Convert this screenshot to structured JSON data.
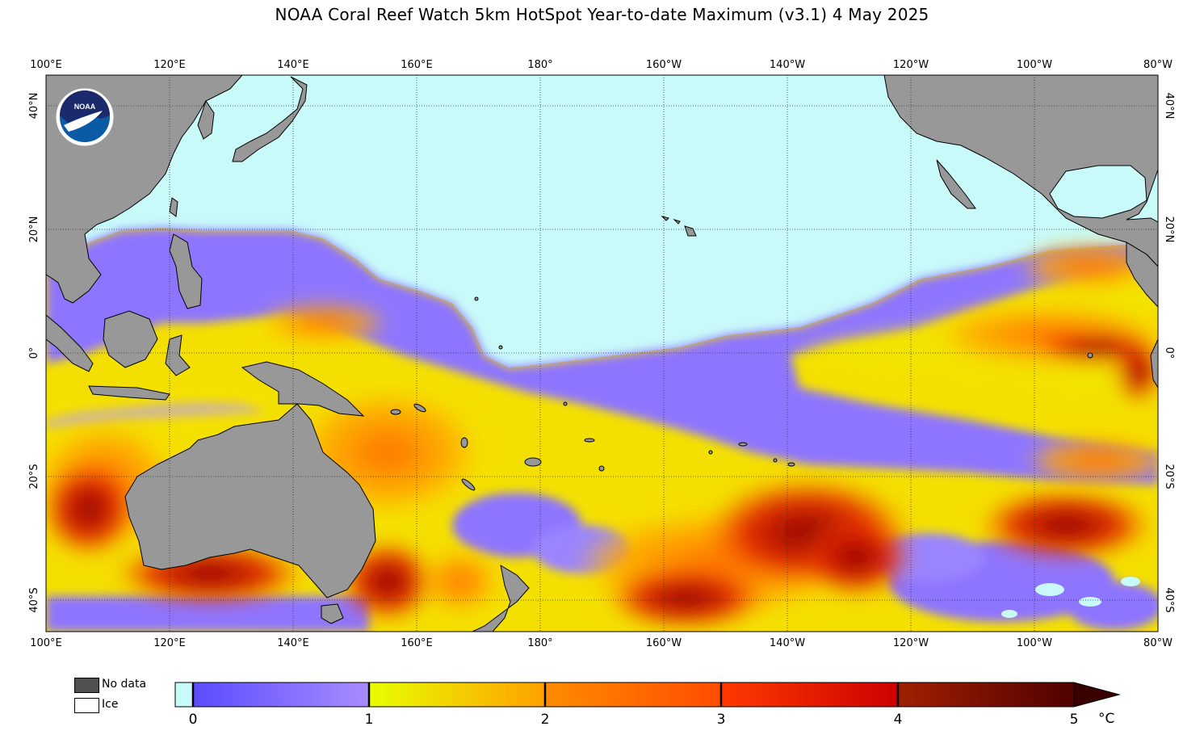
{
  "title": "NOAA Coral Reef Watch 5km HotSpot Year-to-date Maximum  (v3.1)   4 May 2025",
  "logo": {
    "name": "NOAA",
    "icon": "noaa-seal-icon"
  },
  "lon_labels": [
    "100°E",
    "120°E",
    "140°E",
    "160°E",
    "180°",
    "160°W",
    "140°W",
    "120°W",
    "100°W",
    "80°W"
  ],
  "lat_labels": [
    "40°N",
    "20°N",
    "0°",
    "20°S",
    "40°S"
  ],
  "legend": {
    "no_data_label": "No data",
    "ice_label": "Ice",
    "no_data_color": "#505050",
    "ice_color": "#ffffff"
  },
  "colorbar": {
    "tick_labels": [
      "0",
      "1",
      "2",
      "3",
      "4",
      "5"
    ],
    "unit": "°C",
    "below_zero_color": "#c8fafa",
    "stops": [
      {
        "value": 0,
        "color": "#5a4cff"
      },
      {
        "value": 1,
        "color": "#a88cff"
      },
      {
        "value": 1,
        "color": "#e8ff00"
      },
      {
        "value": 2,
        "color": "#ffa000"
      },
      {
        "value": 2,
        "color": "#ff8c00"
      },
      {
        "value": 3,
        "color": "#ff4c00"
      },
      {
        "value": 3,
        "color": "#ff3a00"
      },
      {
        "value": 4,
        "color": "#cc0000"
      },
      {
        "value": 4,
        "color": "#a02000"
      },
      {
        "value": 5,
        "color": "#500000"
      }
    ]
  },
  "colors": {
    "land": "#989898",
    "ocean_no_stress": "#c8fafa",
    "grid": "#333333"
  }
}
